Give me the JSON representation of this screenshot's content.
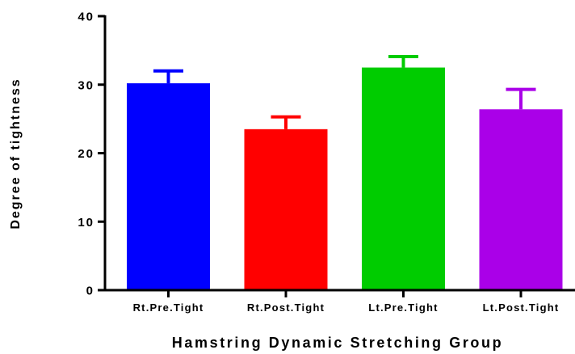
{
  "chart_data": {
    "type": "bar",
    "title": "",
    "xlabel": "Hamstring Dynamic Stretching Group",
    "ylabel": "Degree of tightness",
    "categories": [
      "Rt.Pre.Tight",
      "Rt.Post.Tight",
      "Lt.Pre.Tight",
      "Lt.Post.Tight"
    ],
    "values": [
      30.2,
      23.5,
      32.5,
      26.4
    ],
    "errors": [
      1.8,
      1.8,
      1.6,
      2.9
    ],
    "colors": [
      "#0000ff",
      "#ff0000",
      "#00cc00",
      "#aa00e8"
    ],
    "ylim": [
      0,
      40
    ],
    "yticks": [
      "0",
      "10",
      "20",
      "30",
      "40"
    ],
    "grid": false,
    "legend": "none"
  }
}
